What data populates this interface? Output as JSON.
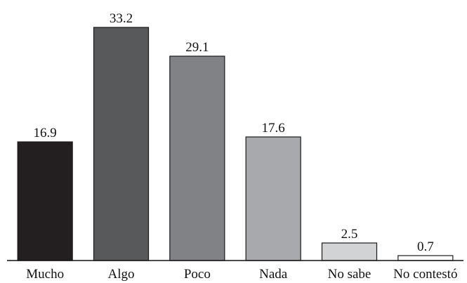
{
  "chart_data": {
    "type": "bar",
    "title": "",
    "xlabel": "",
    "ylabel": "",
    "categories": [
      "Mucho",
      "Algo",
      "Poco",
      "Nada",
      "No sabe",
      "No contestó"
    ],
    "values": [
      16.9,
      33.2,
      29.1,
      17.6,
      2.5,
      0.7
    ],
    "value_labels": [
      "16.9",
      "33.2",
      "29.1",
      "17.6",
      "2.5",
      "0.7"
    ],
    "colors": [
      "#231f20",
      "#58595b",
      "#808285",
      "#a7a9ac",
      "#d1d3d4",
      "#ffffff"
    ],
    "ylim": [
      0,
      33.2
    ],
    "grid": false,
    "legend": "none"
  }
}
